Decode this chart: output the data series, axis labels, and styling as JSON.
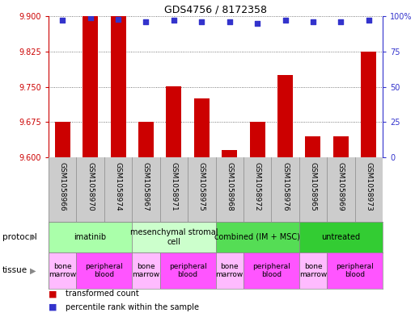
{
  "title": "GDS4756 / 8172358",
  "samples": [
    "GSM1058966",
    "GSM1058970",
    "GSM1058974",
    "GSM1058967",
    "GSM1058971",
    "GSM1058975",
    "GSM1058968",
    "GSM1058972",
    "GSM1058976",
    "GSM1058965",
    "GSM1058969",
    "GSM1058973"
  ],
  "transformed_counts": [
    9.675,
    9.9,
    9.9,
    9.675,
    9.75,
    9.725,
    9.615,
    9.675,
    9.775,
    9.645,
    9.645,
    9.825
  ],
  "percentile_ranks": [
    97,
    99,
    98,
    96,
    97,
    96,
    96,
    95,
    97,
    96,
    96,
    97
  ],
  "ylim_left": [
    9.6,
    9.9
  ],
  "ylim_right": [
    0,
    100
  ],
  "yticks_left": [
    9.6,
    9.675,
    9.75,
    9.825,
    9.9
  ],
  "yticks_right": [
    0,
    25,
    50,
    75,
    100
  ],
  "bar_color": "#cc0000",
  "dot_color": "#3333cc",
  "protocols": [
    {
      "label": "imatinib",
      "start": 0,
      "end": 3,
      "color": "#aaffaa"
    },
    {
      "label": "mesenchymal stromal\ncell",
      "start": 3,
      "end": 6,
      "color": "#ccffcc"
    },
    {
      "label": "combined (IM + MSC)",
      "start": 6,
      "end": 9,
      "color": "#55dd55"
    },
    {
      "label": "untreated",
      "start": 9,
      "end": 12,
      "color": "#33cc33"
    }
  ],
  "tissues": [
    {
      "label": "bone\nmarrow",
      "start": 0,
      "end": 1,
      "color": "#ffbbff"
    },
    {
      "label": "peripheral\nblood",
      "start": 1,
      "end": 3,
      "color": "#ff55ff"
    },
    {
      "label": "bone\nmarrow",
      "start": 3,
      "end": 4,
      "color": "#ffbbff"
    },
    {
      "label": "peripheral\nblood",
      "start": 4,
      "end": 6,
      "color": "#ff55ff"
    },
    {
      "label": "bone\nmarrow",
      "start": 6,
      "end": 7,
      "color": "#ffbbff"
    },
    {
      "label": "peripheral\nblood",
      "start": 7,
      "end": 9,
      "color": "#ff55ff"
    },
    {
      "label": "bone\nmarrow",
      "start": 9,
      "end": 10,
      "color": "#ffbbff"
    },
    {
      "label": "peripheral\nblood",
      "start": 10,
      "end": 12,
      "color": "#ff55ff"
    }
  ],
  "grid_color": "#555555",
  "bg_color": "#ffffff",
  "sample_bg_color": "#cccccc",
  "left_axis_color": "#cc0000",
  "right_axis_color": "#3333cc",
  "protocol_label_left": "protocol",
  "tissue_label_left": "tissue"
}
